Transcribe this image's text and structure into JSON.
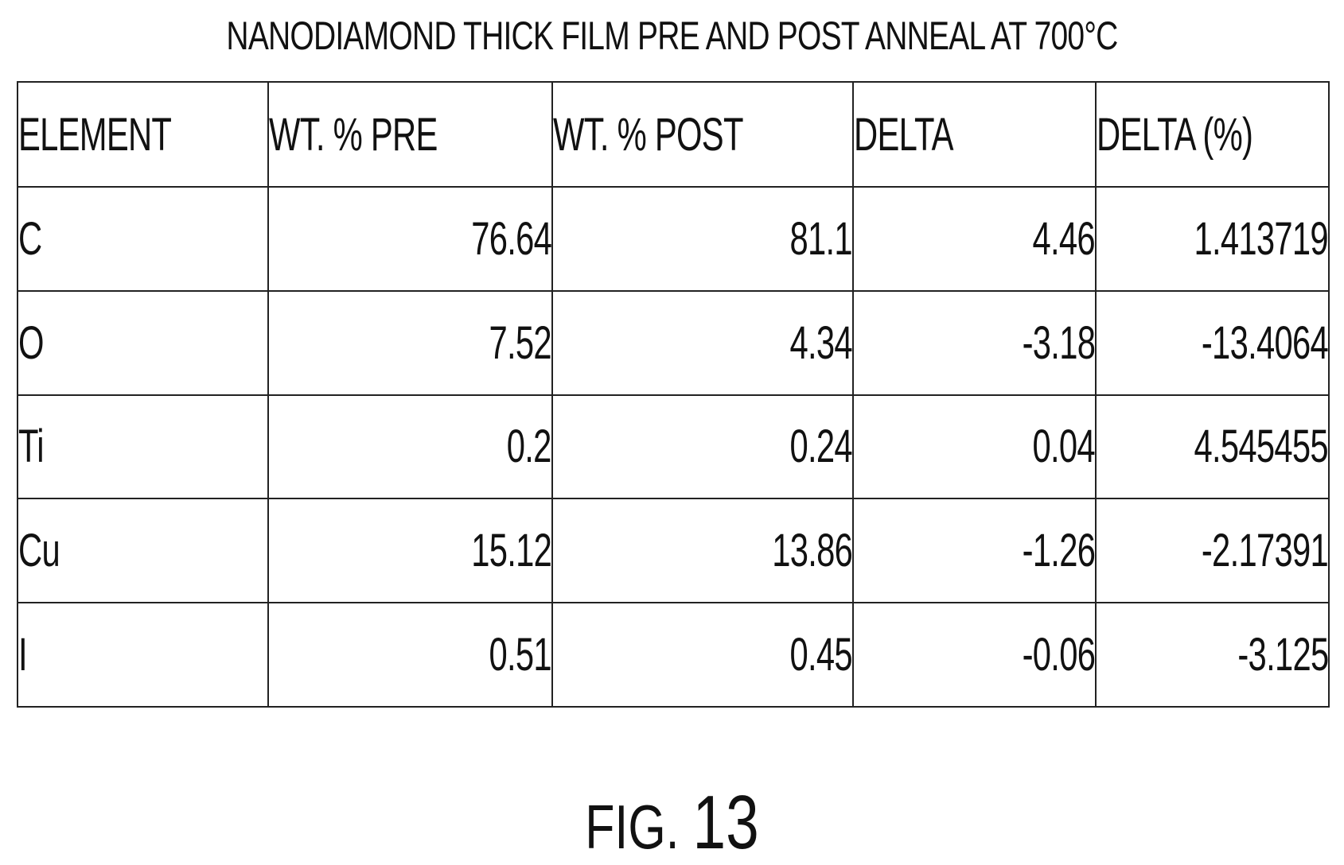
{
  "title": "NANODIAMOND THICK FILM PRE AND POST ANNEAL AT 700°C",
  "table": {
    "headers": [
      "ELEMENT",
      "WT. % PRE",
      "WT. % POST",
      "DELTA",
      "DELTA (%)"
    ],
    "rows": [
      [
        "C",
        "76.64",
        "81.1",
        "4.46",
        "1.413719"
      ],
      [
        "O",
        "7.52",
        "4.34",
        "-3.18",
        "-13.4064"
      ],
      [
        "Ti",
        "0.2",
        "0.24",
        "0.04",
        "4.545455"
      ],
      [
        "Cu",
        "15.12",
        "13.86",
        "-1.26",
        "-2.17391"
      ],
      [
        "I",
        "0.51",
        "0.45",
        "-0.06",
        "-3.125"
      ]
    ]
  },
  "figure": {
    "prefix": "FIG.",
    "number": "13"
  }
}
